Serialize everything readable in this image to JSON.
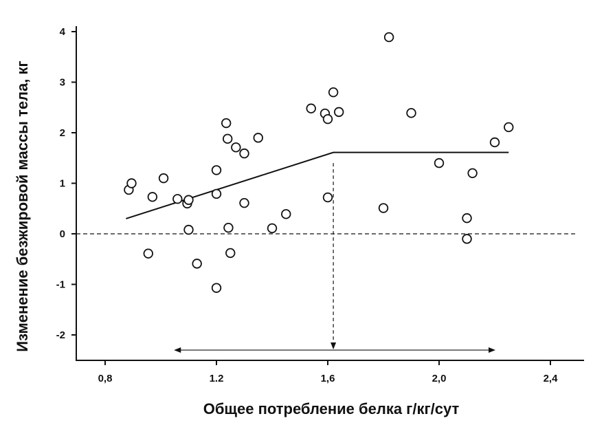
{
  "chart_data": {
    "type": "scatter",
    "title": "",
    "xlabel": "Общее потребление белка г/кг/сут",
    "ylabel": "Изменение безжировой массы тела, кг",
    "xlim": [
      0.7,
      2.55
    ],
    "ylim": [
      -2.5,
      4.1
    ],
    "x_ticks": [
      {
        "value": 0.8,
        "label": "0,8"
      },
      {
        "value": 1.2,
        "label": "1.2"
      },
      {
        "value": 1.6,
        "label": "1,6"
      },
      {
        "value": 2.0,
        "label": "2,0"
      },
      {
        "value": 2.4,
        "label": "2,4"
      }
    ],
    "y_ticks": [
      {
        "value": 4,
        "label": "4"
      },
      {
        "value": 3,
        "label": "3"
      },
      {
        "value": 2,
        "label": "2"
      },
      {
        "value": 1,
        "label": "1"
      },
      {
        "value": 0,
        "label": "0"
      },
      {
        "value": -1,
        "label": "-1"
      },
      {
        "value": -2,
        "label": "-2"
      }
    ],
    "grid": false,
    "series": [
      {
        "marker": "open-circle",
        "points": [
          {
            "x": 0.885,
            "y": 0.87
          },
          {
            "x": 0.895,
            "y": 1.0
          },
          {
            "x": 0.955,
            "y": -0.39
          },
          {
            "x": 0.97,
            "y": 0.73
          },
          {
            "x": 1.01,
            "y": 1.1
          },
          {
            "x": 1.06,
            "y": 0.69
          },
          {
            "x": 1.095,
            "y": 0.6
          },
          {
            "x": 1.1,
            "y": 0.67
          },
          {
            "x": 1.1,
            "y": 0.08
          },
          {
            "x": 1.13,
            "y": -0.59
          },
          {
            "x": 1.2,
            "y": 1.26
          },
          {
            "x": 1.2,
            "y": 0.79
          },
          {
            "x": 1.2,
            "y": -1.07
          },
          {
            "x": 1.235,
            "y": 2.19
          },
          {
            "x": 1.24,
            "y": 1.88
          },
          {
            "x": 1.243,
            "y": 0.12
          },
          {
            "x": 1.25,
            "y": -0.38
          },
          {
            "x": 1.27,
            "y": 1.71
          },
          {
            "x": 1.3,
            "y": 1.59
          },
          {
            "x": 1.3,
            "y": 0.61
          },
          {
            "x": 1.35,
            "y": 1.9
          },
          {
            "x": 1.4,
            "y": 0.11
          },
          {
            "x": 1.45,
            "y": 0.39
          },
          {
            "x": 1.54,
            "y": 2.48
          },
          {
            "x": 1.59,
            "y": 2.38
          },
          {
            "x": 1.6,
            "y": 2.27
          },
          {
            "x": 1.6,
            "y": 0.72
          },
          {
            "x": 1.62,
            "y": 2.8
          },
          {
            "x": 1.64,
            "y": 2.41
          },
          {
            "x": 1.8,
            "y": 0.51
          },
          {
            "x": 1.82,
            "y": 3.89
          },
          {
            "x": 1.9,
            "y": 2.39
          },
          {
            "x": 2.0,
            "y": 1.4
          },
          {
            "x": 2.1,
            "y": 0.31
          },
          {
            "x": 2.1,
            "y": -0.1
          },
          {
            "x": 2.12,
            "y": 1.2
          },
          {
            "x": 2.2,
            "y": 1.81
          },
          {
            "x": 2.25,
            "y": 2.11
          }
        ]
      }
    ],
    "fit_line": [
      {
        "x": 0.875,
        "y": 0.3
      },
      {
        "x": 1.62,
        "y": 1.61
      },
      {
        "x": 2.25,
        "y": 1.61
      }
    ],
    "reference_line_y": 0,
    "breakpoint_x": 1.62,
    "range_arrow": {
      "x_start": 1.05,
      "x_end": 2.2,
      "y": -2.3
    }
  }
}
